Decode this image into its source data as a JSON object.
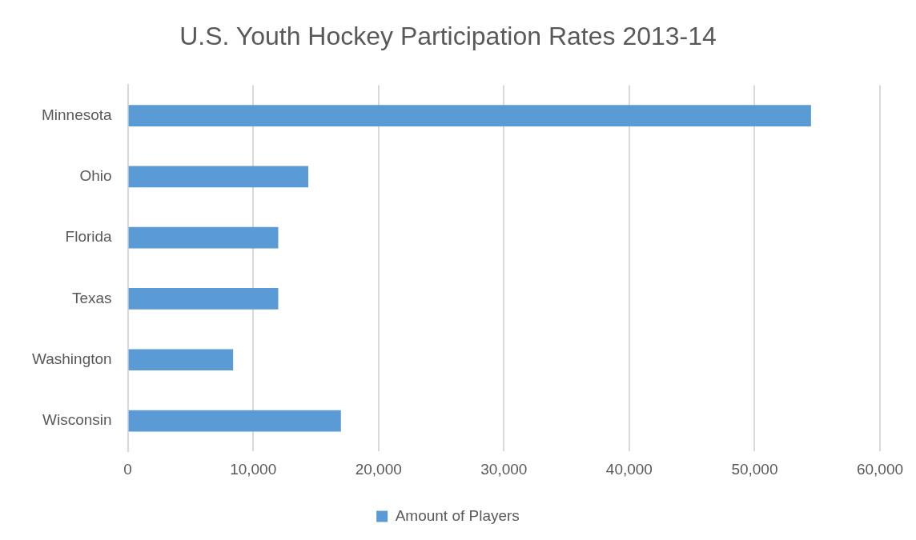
{
  "chart_data": {
    "type": "bar",
    "orientation": "horizontal",
    "title": "U.S. Youth Hockey Participation Rates 2013-14",
    "categories": [
      "Minnesota",
      "Ohio",
      "Florida",
      "Texas",
      "Washington",
      "Wisconsin"
    ],
    "series": [
      {
        "name": "Amount of Players",
        "color": "#5b9bd5",
        "values": [
          54500,
          14400,
          12000,
          12000,
          8400,
          17000
        ]
      }
    ],
    "xlim": [
      0,
      60000
    ],
    "xticks": [
      {
        "value": 0,
        "label": "0"
      },
      {
        "value": 10000,
        "label": "10,000"
      },
      {
        "value": 20000,
        "label": "20,000"
      },
      {
        "value": 30000,
        "label": "30,000"
      },
      {
        "value": 40000,
        "label": "40,000"
      },
      {
        "value": 50000,
        "label": "50,000"
      },
      {
        "value": 60000,
        "label": "60,000"
      }
    ],
    "grid": "x",
    "legend": "bottom"
  }
}
